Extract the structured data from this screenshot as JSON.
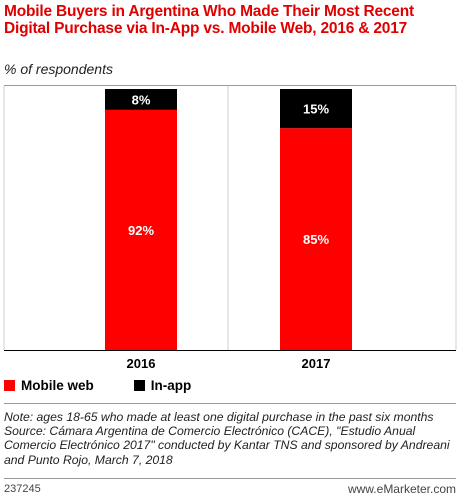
{
  "header": {
    "title": "Mobile Buyers in Argentina Who Made Their Most Recent Digital Purchase via In-App vs. Mobile Web, 2016 & 2017",
    "subtitle": "% of respondents"
  },
  "colors": {
    "mobile_web": "#ff0000",
    "in_app": "#000000",
    "title": "#e00000"
  },
  "chart_data": {
    "type": "bar",
    "stacked": true,
    "categories": [
      "2016",
      "2017"
    ],
    "series": [
      {
        "name": "Mobile web",
        "values": [
          92,
          85
        ],
        "labels": [
          "92%",
          "85%"
        ],
        "color": "#ff0000"
      },
      {
        "name": "In-app",
        "values": [
          8,
          15
        ],
        "labels": [
          "8%",
          "15%"
        ],
        "color": "#000000"
      }
    ],
    "ylim": [
      0,
      100
    ],
    "legend_position": "bottom-left"
  },
  "notes": {
    "note": "Note: ages 18-65 who made at least one digital purchase in the past six months",
    "source": "Source: Cámara Argentina de Comercio Electrónico (CACE), \"Estudio Anual Comercio Electrónico 2017\" conducted by Kantar TNS and sponsored by Andreani and Punto Rojo, March 7, 2018"
  },
  "footer": {
    "id": "237245",
    "brand": "www.eMarketer.com"
  }
}
